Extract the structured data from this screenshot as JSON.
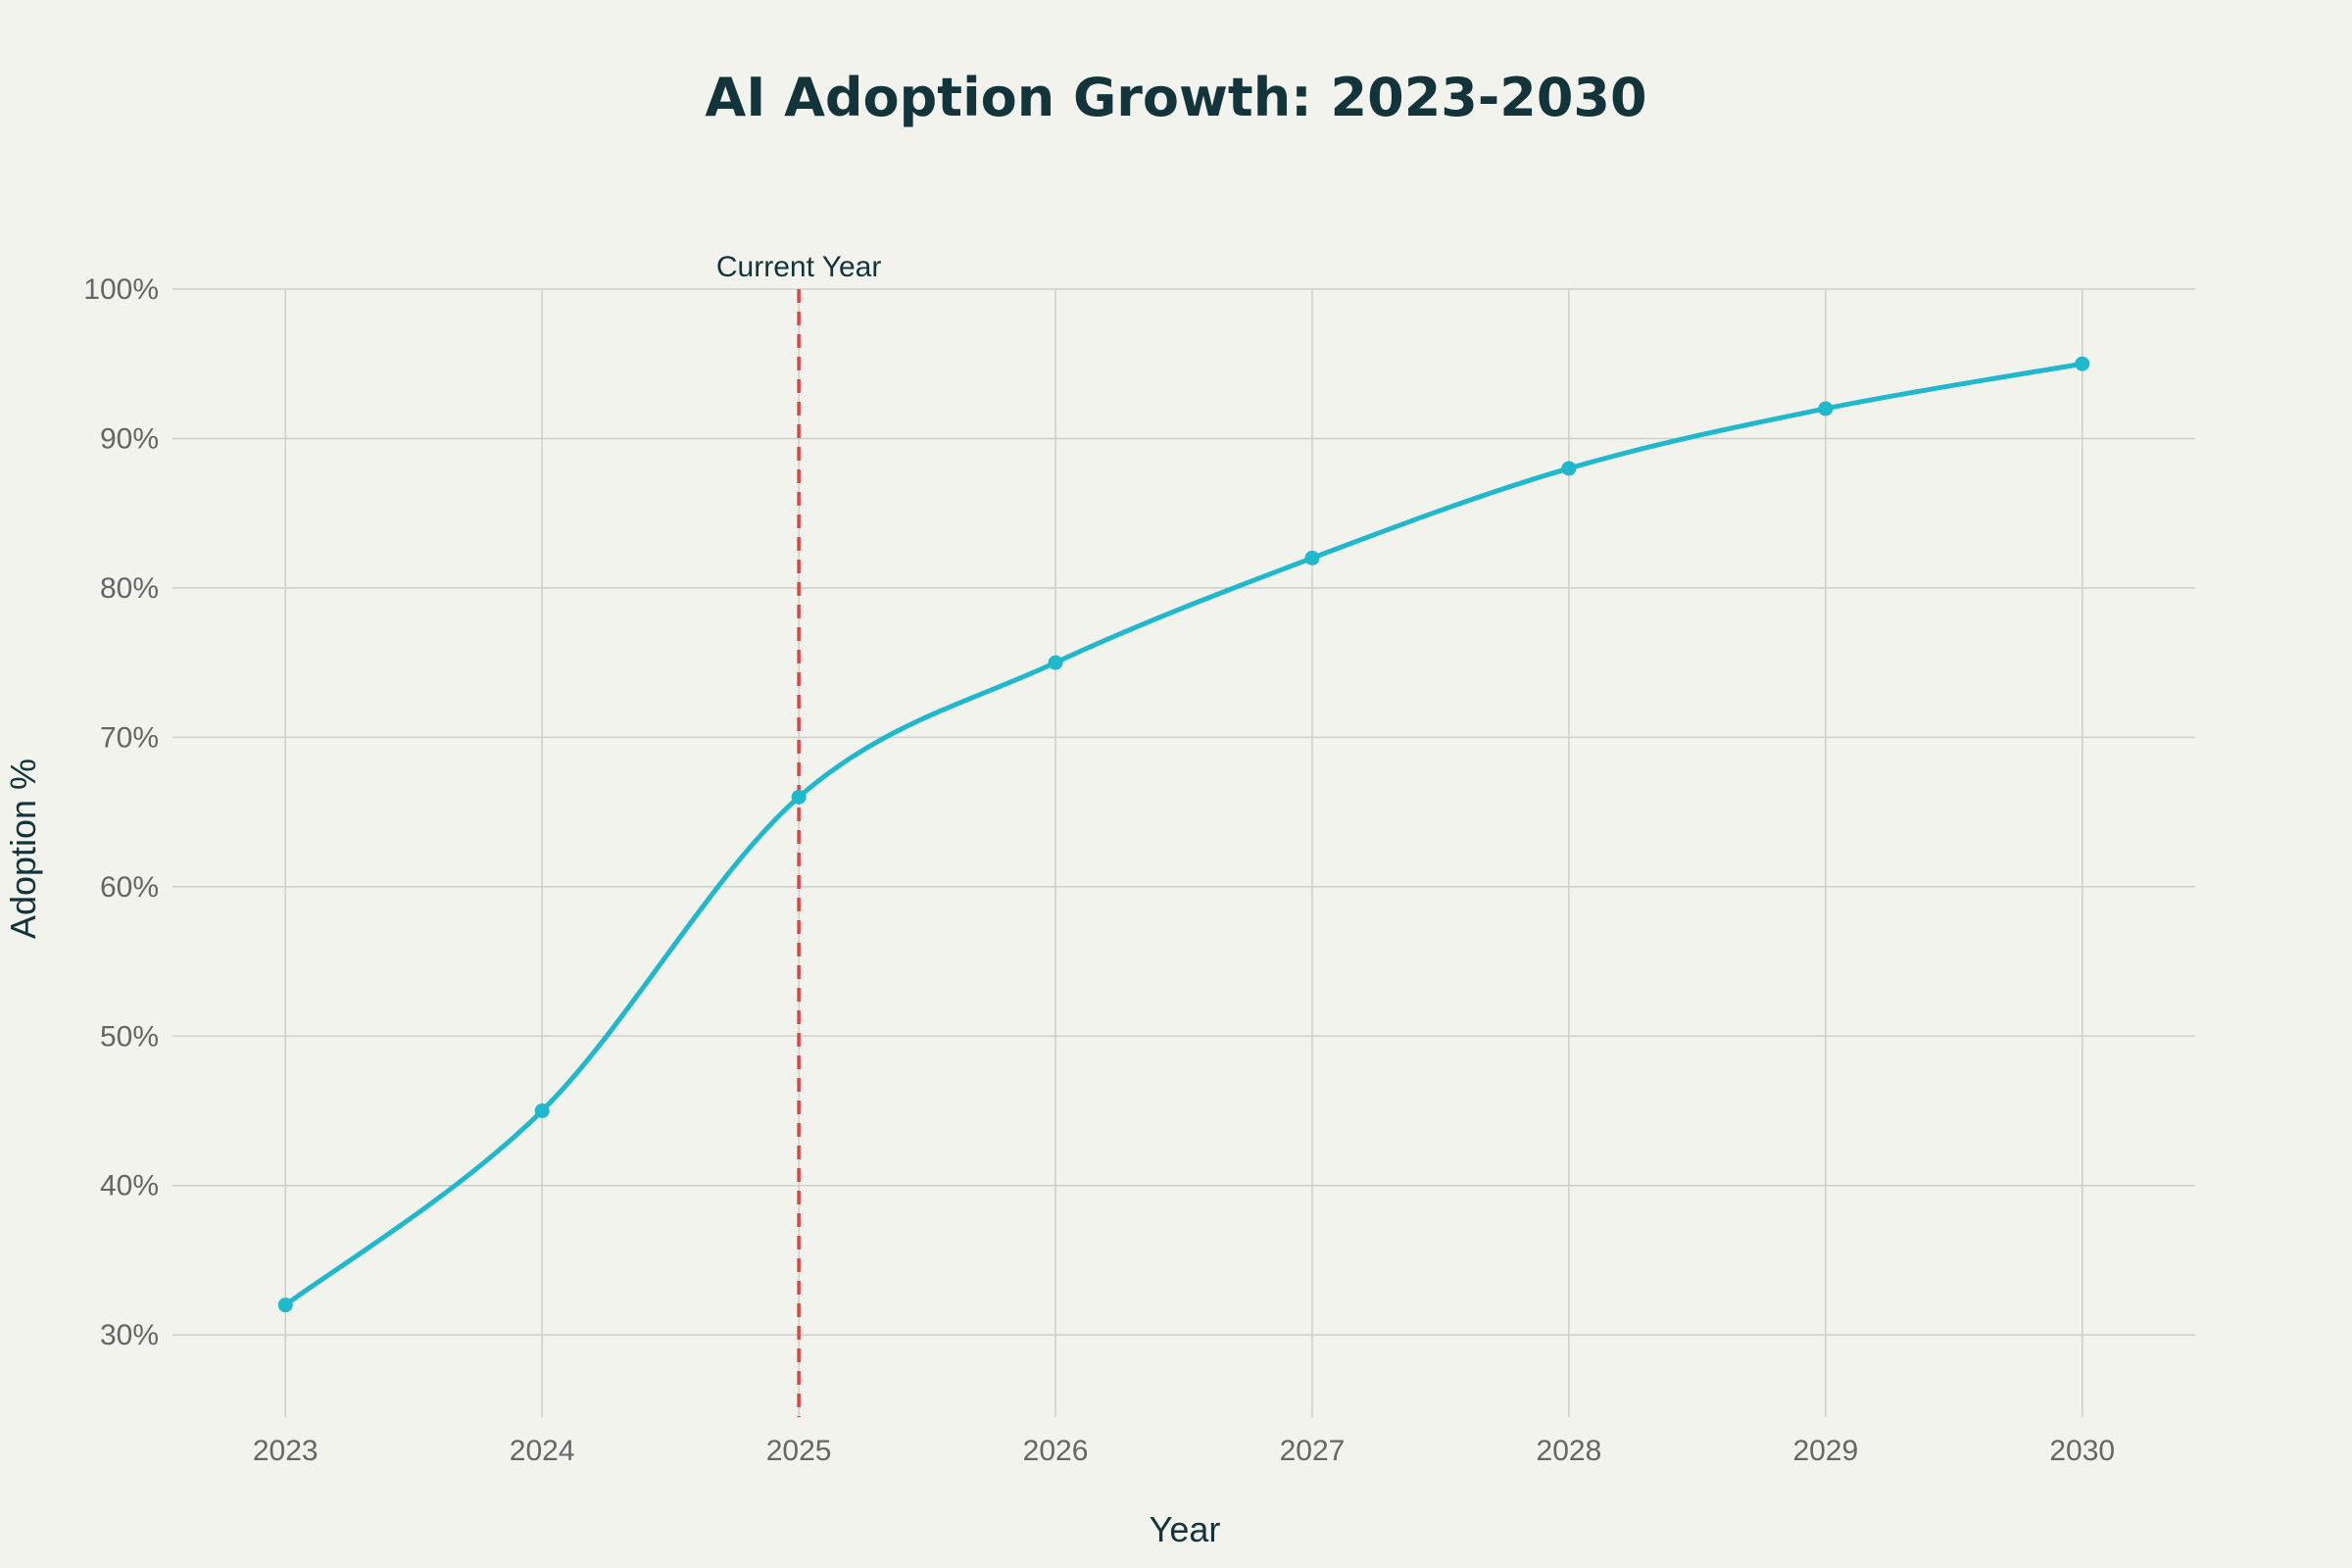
{
  "chart_data": {
    "type": "line",
    "title": "AI Adoption Growth: 2023-2030",
    "xlabel": "Year",
    "ylabel": "Adoption %",
    "x": [
      2023,
      2024,
      2025,
      2026,
      2027,
      2028,
      2029,
      2030
    ],
    "x_tick_labels": [
      "2023",
      "2024",
      "2025",
      "2026",
      "2027",
      "2028",
      "2029",
      "2030"
    ],
    "series": [
      {
        "values": [
          32,
          45,
          66,
          75,
          82,
          88,
          92,
          95
        ],
        "color": "#1fb8cd",
        "line_shape": "spline",
        "markers": true
      }
    ],
    "y_ticks": [
      30,
      40,
      50,
      60,
      70,
      80,
      90,
      100
    ],
    "y_tick_labels": [
      "30%",
      "40%",
      "50%",
      "60%",
      "70%",
      "80%",
      "90%",
      "100%"
    ],
    "xlim": [
      2022.56,
      2030.44
    ],
    "ylim": [
      24.5,
      100
    ],
    "grid": true,
    "legend": "none",
    "annotations": [
      {
        "type": "vertical-line",
        "x": 2025,
        "label": "Current Year",
        "color": "#db4545",
        "style": "dashed"
      }
    ],
    "colors": {
      "background": "#f3f3ee",
      "grid": "#cfcfc9",
      "text": "#13343b"
    }
  }
}
